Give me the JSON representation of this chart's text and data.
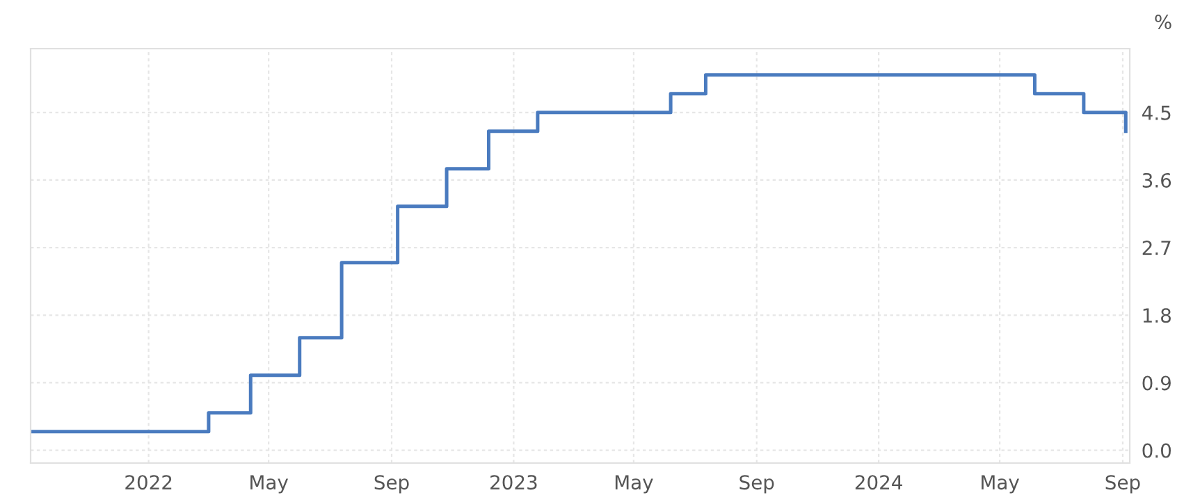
{
  "chart_data": {
    "type": "step",
    "ylabel": "%",
    "x": [
      "2021-09-05",
      "2022-03-02",
      "2022-04-13",
      "2022-06-01",
      "2022-07-13",
      "2022-09-07",
      "2022-10-26",
      "2022-12-07",
      "2023-01-25",
      "2023-06-07",
      "2023-07-12",
      "2024-06-05",
      "2024-07-24",
      "2024-09-04"
    ],
    "series": [
      {
        "color": "#4a7bbf",
        "values": [
          0.25,
          0.5,
          1.0,
          1.5,
          2.5,
          3.25,
          3.75,
          4.25,
          4.5,
          4.75,
          5.0,
          4.75,
          4.5,
          4.25
        ]
      }
    ],
    "xlim": [
      "2021-09-05",
      "2024-09-08"
    ],
    "xticks": [
      {
        "value": "2022-01-01",
        "label": "2022"
      },
      {
        "value": "2022-05-01",
        "label": "May"
      },
      {
        "value": "2022-09-01",
        "label": "Sep"
      },
      {
        "value": "2023-01-01",
        "label": "2023"
      },
      {
        "value": "2023-05-01",
        "label": "May"
      },
      {
        "value": "2023-09-01",
        "label": "Sep"
      },
      {
        "value": "2024-01-01",
        "label": "2024"
      },
      {
        "value": "2024-05-01",
        "label": "May"
      },
      {
        "value": "2024-09-01",
        "label": "Sep"
      }
    ],
    "ylim": [
      -0.17,
      5.35
    ],
    "yticks": [
      {
        "value": 0,
        "label": "0.0"
      },
      0.9,
      1.8,
      2.7,
      3.6,
      4.5
    ],
    "grid": true,
    "line_style": "solid",
    "marker": "none"
  }
}
